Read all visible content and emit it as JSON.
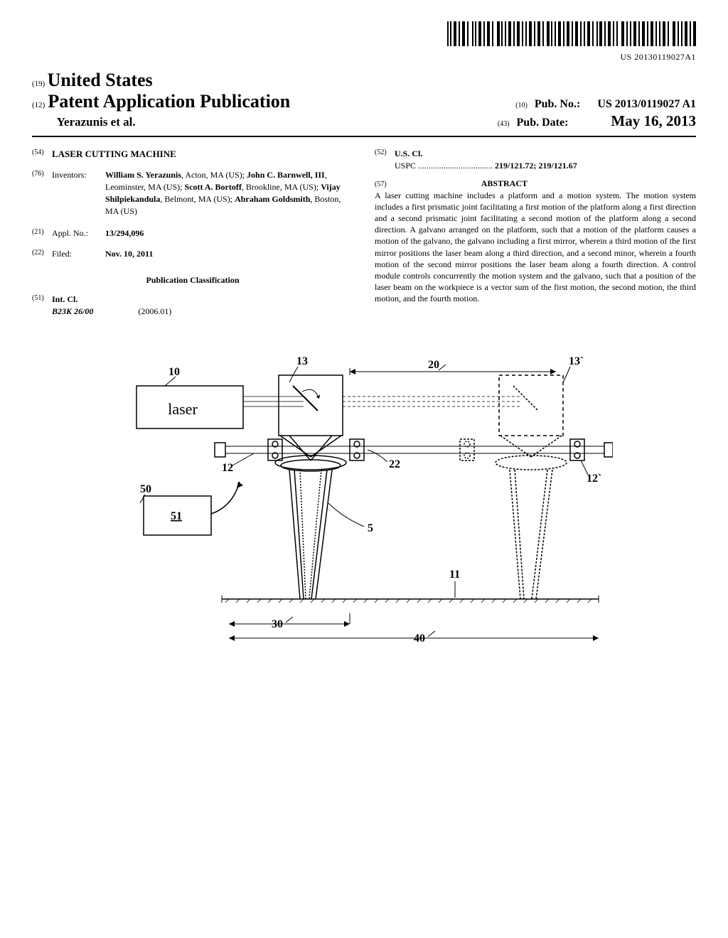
{
  "barcode": {
    "text": "US 20130119027A1"
  },
  "header": {
    "num19": "(19)",
    "country": "United States",
    "num12": "(12)",
    "pub_type": "Patent Application Publication",
    "authors_line": "Yerazunis et al.",
    "num10": "(10)",
    "pub_no_label": "Pub. No.:",
    "pub_no": "US 2013/0119027 A1",
    "num43": "(43)",
    "pub_date_label": "Pub. Date:",
    "pub_date": "May 16, 2013"
  },
  "left_col": {
    "num54": "(54)",
    "title": "LASER CUTTING MACHINE",
    "num76": "(76)",
    "inventors_label": "Inventors:",
    "inventors": [
      {
        "name": "William S. Yerazunis",
        "loc": ", Acton, MA (US);"
      },
      {
        "name": "John C. Barnwell, III",
        "loc": ", Leominster, MA (US);"
      },
      {
        "name": "Scott A. Bortoff",
        "loc": ", Brookline, MA (US);"
      },
      {
        "name": "Vijay Shilpiekandula",
        "loc": ", Belmont, MA (US);"
      },
      {
        "name": "Abraham Goldsmith",
        "loc": ", Boston, MA (US)"
      }
    ],
    "num21": "(21)",
    "appl_label": "Appl. No.:",
    "appl_no": "13/294,096",
    "num22": "(22)",
    "filed_label": "Filed:",
    "filed_date": "Nov. 10, 2011",
    "classification_header": "Publication Classification",
    "num51": "(51)",
    "int_cl_label": "Int. Cl.",
    "int_cl_code": "B23K 26/00",
    "int_cl_year": "(2006.01)"
  },
  "right_col": {
    "num52": "(52)",
    "us_cl_label": "U.S. Cl.",
    "uspc_label": "USPC",
    "uspc_codes": "219/121.72; 219/121.67",
    "num57": "(57)",
    "abstract_label": "ABSTRACT",
    "abstract": "A laser cutting machine includes a platform and a motion system. The motion system includes a first prismatic joint facilitating a first motion of the platform along a first direction and a second prismatic joint facilitating a second motion of the platform along a second direction. A galvano arranged on the platform, such that a motion of the platform causes a motion of the galvano, the galvano including a first mirror, wherein a third motion of the first mirror positions the laser beam along a third direction, and a second minor, wherein a fourth motion of the second mirror positions the laser beam along a fourth direction. A control module controls concurrently the motion system and the galvano, such that a position of the laser beam on the workpiece is a vector sum of the first motion, the second motion, the third motion, and the fourth motion."
  },
  "figure": {
    "labels": {
      "l10": "10",
      "l13": "13",
      "l13p": "13`",
      "l20": "20",
      "l12": "12",
      "l12p": "12`",
      "l22": "22",
      "l50": "50",
      "l51": "51",
      "l5": "5",
      "l11": "11",
      "l30": "30",
      "l40": "40",
      "laser": "laser"
    },
    "colors": {
      "stroke": "#000000",
      "fill_none": "none"
    }
  }
}
